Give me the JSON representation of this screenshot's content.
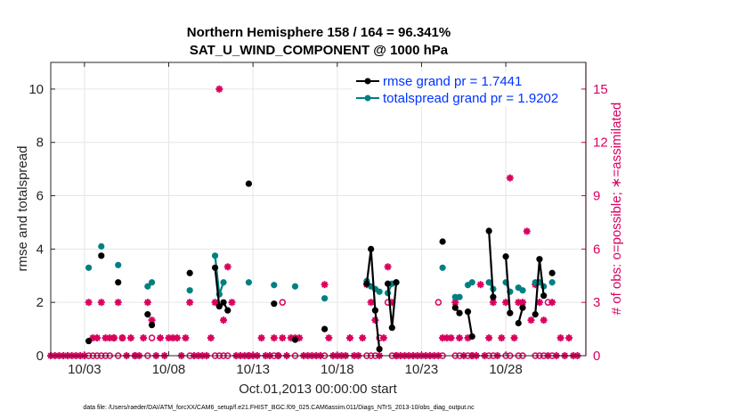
{
  "chart_data": {
    "type": "scatter",
    "title_line1": "Northern Hemisphere 158 / 164 = 96.341%",
    "title_line2": "SAT_U_WIND_COMPONENT @ 1000 hPa",
    "xlabel": "Oct.01,2013 00:00:00 start",
    "ylabel_left": "rmse and totalspread",
    "ylabel_right": "# of obs: o=possible; ∗=assimilated",
    "footer": "data file: /Users/raeder/DAI/ATM_forcXX/CAM6_setup/f.e21.FHIST_BGC.f09_025.CAM6assim.011/Diags_NTrS_2013-10/obs_diag_output.nc",
    "xlim": [
      1,
      32.75
    ],
    "ylim_left": [
      0,
      11
    ],
    "ylim_right": [
      0,
      16.5
    ],
    "x_ticks": [
      3,
      8,
      13,
      18,
      23,
      28
    ],
    "x_tick_labels": [
      "10/03",
      "10/08",
      "10/13",
      "10/18",
      "10/23",
      "10/28"
    ],
    "y_left_ticks": [
      0,
      2,
      4,
      6,
      8,
      10
    ],
    "y_left_tick_labels": [
      "0",
      "2",
      "4",
      "6",
      "8",
      "10"
    ],
    "y_right_ticks": [
      0,
      3,
      6,
      9,
      12,
      15
    ],
    "y_right_tick_labels": [
      "0",
      "3",
      "6",
      "9",
      "12",
      "15"
    ],
    "legend": [
      {
        "label": "rmse grand pr = 1.7441",
        "color": "#000000"
      },
      {
        "label": "totalspread grand pr = 1.9202",
        "color": "#008080"
      }
    ],
    "colors": {
      "rmse": "#000000",
      "spread": "#008080",
      "obs": "#d9005e",
      "grid": "#e6e6e6"
    },
    "rmse": [
      [
        3.25,
        0.55
      ],
      [
        4.0,
        3.75
      ],
      [
        5.0,
        2.75
      ],
      [
        6.75,
        1.55
      ],
      [
        7.0,
        1.15
      ],
      [
        9.25,
        3.1
      ],
      [
        10.75,
        3.3
      ],
      [
        11.0,
        1.85
      ],
      [
        11.25,
        2.0
      ],
      [
        11.5,
        1.7
      ],
      [
        12.75,
        6.45
      ],
      [
        14.25,
        1.95
      ],
      [
        15.5,
        0.6
      ],
      [
        17.25,
        1.0
      ],
      [
        19.75,
        2.7
      ],
      [
        20.0,
        4.0
      ],
      [
        20.25,
        1.7
      ],
      [
        20.5,
        0.25
      ],
      [
        21.0,
        2.7
      ],
      [
        21.25,
        1.05
      ],
      [
        21.5,
        2.75
      ],
      [
        24.25,
        4.28
      ],
      [
        25.0,
        1.8
      ],
      [
        25.25,
        1.6
      ],
      [
        25.75,
        1.65
      ],
      [
        26.0,
        0.72
      ],
      [
        27.0,
        4.68
      ],
      [
        27.25,
        2.2
      ],
      [
        28.0,
        3.72
      ],
      [
        28.25,
        1.6
      ],
      [
        28.75,
        1.22
      ],
      [
        29.0,
        1.8
      ],
      [
        29.75,
        1.55
      ],
      [
        30.0,
        3.62
      ],
      [
        30.25,
        2.25
      ],
      [
        30.75,
        3.1
      ]
    ],
    "rmse_lines": [
      [
        [
          10.75,
          3.3
        ],
        [
          11.0,
          1.85
        ],
        [
          11.25,
          2.0
        ],
        [
          11.5,
          1.7
        ]
      ],
      [
        [
          19.75,
          2.7
        ],
        [
          20.0,
          4.0
        ],
        [
          20.25,
          1.7
        ],
        [
          20.5,
          0.25
        ]
      ],
      [
        [
          21.0,
          2.7
        ],
        [
          21.25,
          1.05
        ],
        [
          21.5,
          2.75
        ]
      ],
      [
        [
          25.0,
          1.8
        ],
        [
          25.25,
          1.6
        ]
      ],
      [
        [
          25.75,
          1.65
        ],
        [
          26.0,
          0.72
        ]
      ],
      [
        [
          27.0,
          4.68
        ],
        [
          27.25,
          2.2
        ]
      ],
      [
        [
          28.0,
          3.72
        ],
        [
          28.25,
          1.6
        ]
      ],
      [
        [
          28.75,
          1.22
        ],
        [
          29.0,
          1.8
        ]
      ],
      [
        [
          29.75,
          1.55
        ],
        [
          30.0,
          3.62
        ],
        [
          30.25,
          2.25
        ]
      ]
    ],
    "spread": [
      [
        3.25,
        3.3
      ],
      [
        4.0,
        4.1
      ],
      [
        5.0,
        3.4
      ],
      [
        6.75,
        2.6
      ],
      [
        7.0,
        2.75
      ],
      [
        9.25,
        2.45
      ],
      [
        10.75,
        3.75
      ],
      [
        11.0,
        2.3
      ],
      [
        11.25,
        2.75
      ],
      [
        12.75,
        2.75
      ],
      [
        14.25,
        2.65
      ],
      [
        15.5,
        2.6
      ],
      [
        17.25,
        2.15
      ],
      [
        19.75,
        2.8
      ],
      [
        20.0,
        2.6
      ],
      [
        20.25,
        2.5
      ],
      [
        20.5,
        2.4
      ],
      [
        21.0,
        2.35
      ],
      [
        21.25,
        2.7
      ],
      [
        21.5,
        2.75
      ],
      [
        24.25,
        3.3
      ],
      [
        25.0,
        2.2
      ],
      [
        25.25,
        2.2
      ],
      [
        25.75,
        2.65
      ],
      [
        26.0,
        2.75
      ],
      [
        27.0,
        2.75
      ],
      [
        27.25,
        2.5
      ],
      [
        28.0,
        2.75
      ],
      [
        28.25,
        2.4
      ],
      [
        28.75,
        2.55
      ],
      [
        29.0,
        2.45
      ],
      [
        29.75,
        2.75
      ],
      [
        30.0,
        2.75
      ],
      [
        30.25,
        2.6
      ],
      [
        30.75,
        2.75
      ]
    ],
    "spread_lines": [
      [
        [
          10.75,
          3.75
        ],
        [
          11.0,
          2.3
        ],
        [
          11.25,
          2.75
        ]
      ],
      [
        [
          19.75,
          2.8
        ],
        [
          20.0,
          2.6
        ],
        [
          20.25,
          2.5
        ],
        [
          20.5,
          2.4
        ]
      ],
      [
        [
          21.0,
          2.35
        ],
        [
          21.25,
          2.7
        ],
        [
          21.5,
          2.75
        ]
      ],
      [
        [
          25.0,
          2.2
        ],
        [
          25.25,
          2.2
        ]
      ],
      [
        [
          25.75,
          2.65
        ],
        [
          26.0,
          2.75
        ]
      ],
      [
        [
          27.0,
          2.75
        ],
        [
          27.25,
          2.5
        ]
      ],
      [
        [
          28.0,
          2.75
        ],
        [
          28.25,
          2.4
        ]
      ],
      [
        [
          28.75,
          2.55
        ],
        [
          29.0,
          2.45
        ]
      ],
      [
        [
          29.75,
          2.75
        ],
        [
          30.0,
          2.75
        ],
        [
          30.25,
          2.6
        ]
      ]
    ],
    "obs_assimilated": [
      [
        1.0,
        0
      ],
      [
        1.25,
        0
      ],
      [
        1.5,
        0
      ],
      [
        1.75,
        0
      ],
      [
        2.0,
        0
      ],
      [
        2.25,
        0
      ],
      [
        2.5,
        0
      ],
      [
        2.75,
        0
      ],
      [
        3.0,
        0
      ],
      [
        3.25,
        3
      ],
      [
        3.5,
        1
      ],
      [
        3.75,
        1
      ],
      [
        4.0,
        3
      ],
      [
        4.25,
        1
      ],
      [
        4.5,
        1
      ],
      [
        4.75,
        1
      ],
      [
        5.0,
        3
      ],
      [
        5.25,
        1
      ],
      [
        5.5,
        0
      ],
      [
        5.75,
        1
      ],
      [
        6.0,
        0
      ],
      [
        6.25,
        0
      ],
      [
        6.5,
        1
      ],
      [
        6.75,
        3
      ],
      [
        7.0,
        2
      ],
      [
        7.25,
        0
      ],
      [
        7.5,
        1
      ],
      [
        7.75,
        0
      ],
      [
        8.0,
        1
      ],
      [
        8.25,
        1
      ],
      [
        8.5,
        1
      ],
      [
        8.75,
        0
      ],
      [
        9.0,
        1
      ],
      [
        9.25,
        3
      ],
      [
        9.5,
        0
      ],
      [
        9.75,
        0
      ],
      [
        10.0,
        0
      ],
      [
        10.25,
        0
      ],
      [
        10.5,
        1
      ],
      [
        10.75,
        3
      ],
      [
        11.0,
        15
      ],
      [
        11.25,
        2
      ],
      [
        11.5,
        5
      ],
      [
        11.75,
        3
      ],
      [
        12.0,
        0
      ],
      [
        12.25,
        0
      ],
      [
        12.5,
        0
      ],
      [
        12.75,
        0
      ],
      [
        13.0,
        0
      ],
      [
        13.25,
        0
      ],
      [
        13.5,
        1
      ],
      [
        13.75,
        0
      ],
      [
        14.0,
        0
      ],
      [
        14.25,
        1
      ],
      [
        14.5,
        0
      ],
      [
        14.75,
        1
      ],
      [
        15.0,
        0
      ],
      [
        15.25,
        1
      ],
      [
        15.5,
        1
      ],
      [
        15.75,
        1
      ],
      [
        16.0,
        0
      ],
      [
        16.25,
        0
      ],
      [
        16.5,
        0
      ],
      [
        16.75,
        0
      ],
      [
        17.0,
        0
      ],
      [
        17.25,
        4
      ],
      [
        17.5,
        1
      ],
      [
        17.75,
        0
      ],
      [
        18.0,
        0
      ],
      [
        18.25,
        0
      ],
      [
        18.5,
        0
      ],
      [
        18.75,
        1
      ],
      [
        19.0,
        0
      ],
      [
        19.25,
        0
      ],
      [
        19.5,
        1
      ],
      [
        19.75,
        4
      ],
      [
        20.0,
        3
      ],
      [
        20.25,
        2
      ],
      [
        20.5,
        0
      ],
      [
        20.75,
        1
      ],
      [
        21.0,
        5
      ],
      [
        21.25,
        3
      ],
      [
        21.5,
        0
      ],
      [
        21.75,
        0
      ],
      [
        22.0,
        0
      ],
      [
        22.25,
        0
      ],
      [
        22.5,
        0
      ],
      [
        22.75,
        0
      ],
      [
        23.0,
        0
      ],
      [
        23.25,
        0
      ],
      [
        23.5,
        0
      ],
      [
        23.75,
        0
      ],
      [
        24.0,
        0
      ],
      [
        24.25,
        1
      ],
      [
        24.5,
        1
      ],
      [
        24.75,
        1
      ],
      [
        25.0,
        3
      ],
      [
        25.25,
        1
      ],
      [
        25.5,
        0
      ],
      [
        25.75,
        1
      ],
      [
        26.0,
        0
      ],
      [
        26.25,
        0
      ],
      [
        26.5,
        4
      ],
      [
        26.75,
        0
      ],
      [
        27.0,
        1
      ],
      [
        27.25,
        3
      ],
      [
        27.5,
        0
      ],
      [
        27.75,
        1
      ],
      [
        28.0,
        3
      ],
      [
        28.25,
        10
      ],
      [
        28.5,
        1
      ],
      [
        28.75,
        3
      ],
      [
        29.0,
        3
      ],
      [
        29.25,
        7
      ],
      [
        29.5,
        2
      ],
      [
        29.75,
        4
      ],
      [
        30.0,
        3
      ],
      [
        30.25,
        2
      ],
      [
        30.5,
        0
      ],
      [
        30.75,
        3
      ],
      [
        31.0,
        0
      ],
      [
        31.25,
        1
      ],
      [
        31.5,
        0
      ],
      [
        31.75,
        1
      ],
      [
        32.0,
        0
      ],
      [
        32.25,
        0
      ]
    ],
    "obs_possible": [
      [
        3.25,
        0
      ],
      [
        3.5,
        0
      ],
      [
        3.75,
        0
      ],
      [
        4.0,
        0
      ],
      [
        4.25,
        0
      ],
      [
        4.5,
        0
      ],
      [
        4.75,
        1
      ],
      [
        5.0,
        0
      ],
      [
        5.25,
        1
      ],
      [
        6.0,
        0
      ],
      [
        6.75,
        0
      ],
      [
        7.0,
        1
      ],
      [
        9.25,
        0
      ],
      [
        10.75,
        0
      ],
      [
        11.0,
        0
      ],
      [
        11.25,
        0
      ],
      [
        11.5,
        0
      ],
      [
        12.75,
        0
      ],
      [
        14.25,
        0
      ],
      [
        14.5,
        0
      ],
      [
        14.75,
        3
      ],
      [
        15.5,
        0
      ],
      [
        17.25,
        0
      ],
      [
        19.75,
        0
      ],
      [
        20.0,
        0
      ],
      [
        20.25,
        0
      ],
      [
        20.5,
        1
      ],
      [
        21.0,
        3
      ],
      [
        21.25,
        0
      ],
      [
        21.5,
        0
      ],
      [
        24.0,
        3
      ],
      [
        24.25,
        0
      ],
      [
        25.0,
        0
      ],
      [
        25.25,
        0
      ],
      [
        25.75,
        0
      ],
      [
        26.0,
        0
      ],
      [
        27.0,
        0
      ],
      [
        27.25,
        0
      ],
      [
        28.0,
        0
      ],
      [
        28.25,
        0
      ],
      [
        28.75,
        0
      ],
      [
        29.0,
        0
      ],
      [
        29.75,
        0
      ],
      [
        30.0,
        0
      ],
      [
        30.25,
        0
      ],
      [
        30.5,
        3
      ],
      [
        30.75,
        0
      ]
    ]
  }
}
